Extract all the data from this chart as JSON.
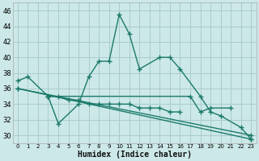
{
  "xlabel": "Humidex (Indice chaleur)",
  "background_color": "#cce8e8",
  "grid_color": "#aacccc",
  "line_color": "#1a7a6a",
  "xlim": [
    -0.5,
    23.5
  ],
  "ylim": [
    29,
    47
  ],
  "yticks": [
    30,
    32,
    34,
    36,
    38,
    40,
    42,
    44,
    46
  ],
  "xticks": [
    0,
    1,
    2,
    3,
    4,
    5,
    6,
    7,
    8,
    9,
    10,
    11,
    12,
    13,
    14,
    15,
    16,
    17,
    18,
    19,
    20,
    21,
    22,
    23
  ],
  "series": [
    [
      0,
      37.0,
      1,
      37.5,
      3,
      35.0,
      4,
      31.5,
      6,
      34.0,
      7,
      37.5,
      8,
      39.5,
      9,
      39.5,
      10,
      45.5,
      11,
      43.0,
      12,
      38.5,
      14,
      40.0,
      15,
      40.0,
      16,
      38.5,
      18,
      35.0,
      19,
      33.0,
      20,
      32.5,
      22,
      31.0,
      23,
      29.5
    ],
    [
      3,
      35.0,
      4,
      35.0,
      5,
      34.5,
      6,
      34.5,
      7,
      34.0,
      8,
      34.0,
      9,
      34.0,
      10,
      34.0,
      11,
      34.0,
      12,
      33.5,
      13,
      33.5,
      14,
      33.5,
      15,
      33.0,
      16,
      33.0
    ],
    [
      0,
      36.0,
      23,
      30.0
    ],
    [
      0,
      36.0,
      23,
      29.5
    ],
    [
      3,
      35.0,
      17,
      35.0,
      18,
      33.0,
      19,
      33.5,
      21,
      33.5
    ]
  ]
}
